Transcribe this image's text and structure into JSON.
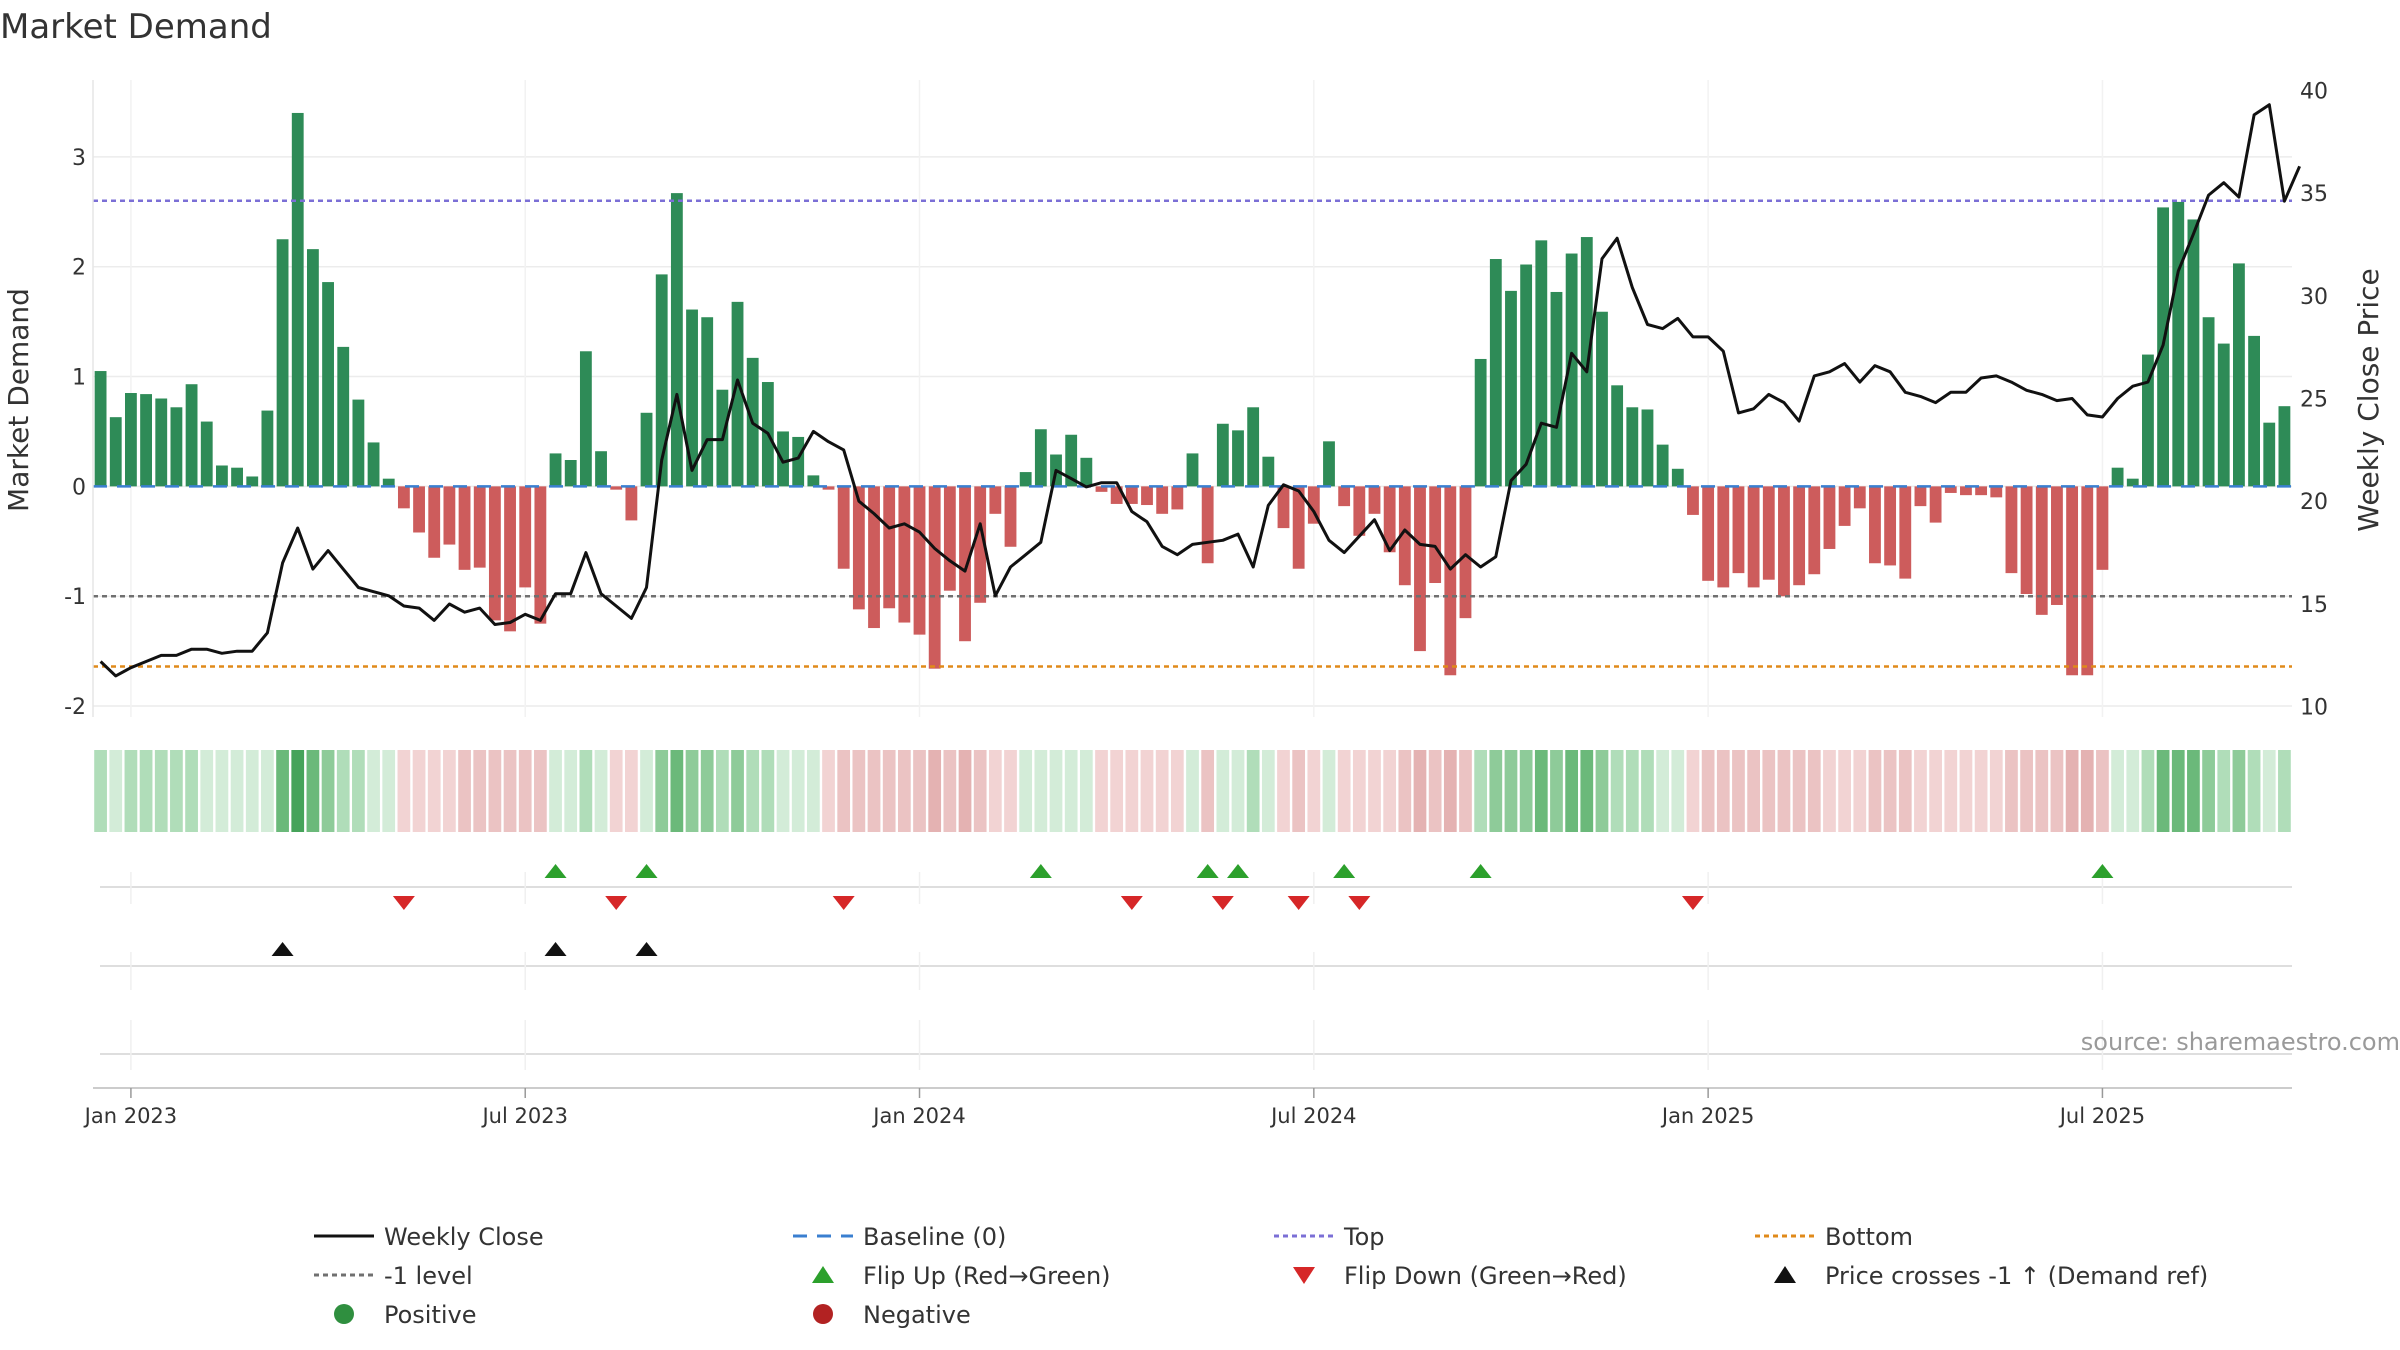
{
  "chart_data": {
    "type": "bar+line",
    "title": "Market Demand",
    "ylabel_left": "Market Demand",
    "ylabel_right": "Weekly Close Price",
    "ylim_left": [
      -2.1,
      3.7
    ],
    "yticks_left": [
      -2,
      -1,
      0,
      1,
      2,
      3
    ],
    "ylim_right": [
      9.5,
      40.5
    ],
    "yticks_right": [
      10,
      15,
      20,
      25,
      30,
      35,
      40
    ],
    "x_start_week": 0,
    "date_ticks": [
      {
        "label": "Jan 2023",
        "week": 2
      },
      {
        "label": "Jul 2023",
        "week": 28
      },
      {
        "label": "Jan 2024",
        "week": 54
      },
      {
        "label": "Jul 2024",
        "week": 80
      },
      {
        "label": "Jan 2025",
        "week": 106
      },
      {
        "label": "Jul 2025",
        "week": 132
      }
    ],
    "reference_lines": {
      "top": 2.6,
      "bottom": -1.64,
      "minus_one": -1,
      "baseline": 0
    },
    "demand": [
      1.05,
      0.63,
      0.85,
      0.84,
      0.8,
      0.72,
      0.93,
      0.59,
      0.19,
      0.17,
      0.09,
      0.69,
      2.25,
      3.4,
      2.16,
      1.86,
      1.27,
      0.79,
      0.4,
      0.07,
      -0.2,
      -0.42,
      -0.65,
      -0.53,
      -0.76,
      -0.74,
      -1.22,
      -1.32,
      -0.92,
      -1.25,
      0.3,
      0.24,
      1.23,
      0.32,
      -0.03,
      -0.31,
      0.67,
      1.93,
      2.67,
      1.61,
      1.54,
      0.88,
      1.68,
      1.17,
      0.95,
      0.5,
      0.45,
      0.1,
      -0.03,
      -0.75,
      -1.12,
      -1.29,
      -1.11,
      -1.24,
      -1.35,
      -1.66,
      -0.95,
      -1.41,
      -1.06,
      -0.25,
      -0.55,
      0.13,
      0.52,
      0.29,
      0.47,
      0.26,
      -0.05,
      -0.16,
      -0.16,
      -0.17,
      -0.25,
      -0.21,
      0.3,
      -0.7,
      0.57,
      0.51,
      0.72,
      0.27,
      -0.38,
      -0.75,
      -0.34,
      0.41,
      -0.18,
      -0.45,
      -0.25,
      -0.6,
      -0.9,
      -1.5,
      -0.88,
      -1.72,
      -1.2,
      1.16,
      2.07,
      1.78,
      2.02,
      2.24,
      1.77,
      2.12,
      2.27,
      1.59,
      0.92,
      0.72,
      0.7,
      0.38,
      0.16,
      -0.26,
      -0.86,
      -0.92,
      -0.79,
      -0.92,
      -0.85,
      -1.0,
      -0.9,
      -0.8,
      -0.57,
      -0.36,
      -0.2,
      -0.7,
      -0.72,
      -0.84,
      -0.18,
      -0.33,
      -0.06,
      -0.08,
      -0.08,
      -0.1,
      -0.79,
      -0.98,
      -1.17,
      -1.08,
      -1.72,
      -1.72,
      -0.76,
      0.17,
      0.07,
      1.2,
      2.54,
      2.59,
      2.43,
      1.54,
      1.3,
      2.03,
      1.37,
      0.58,
      0.73
    ],
    "close": [
      12.2,
      11.5,
      11.9,
      12.2,
      12.5,
      12.5,
      12.8,
      12.8,
      12.6,
      12.7,
      12.7,
      13.6,
      17.0,
      18.7,
      16.7,
      17.6,
      16.7,
      15.8,
      15.6,
      15.4,
      14.9,
      14.8,
      14.2,
      15.0,
      14.6,
      14.8,
      14.0,
      14.1,
      14.5,
      14.2,
      15.5,
      15.5,
      17.5,
      15.5,
      14.9,
      14.3,
      15.8,
      22.0,
      25.2,
      21.5,
      23.0,
      23.0,
      25.9,
      23.8,
      23.3,
      21.9,
      22.1,
      23.4,
      22.9,
      22.5,
      20.0,
      19.4,
      18.7,
      18.9,
      18.5,
      17.7,
      17.1,
      16.6,
      18.9,
      15.4,
      16.8,
      17.4,
      18.0,
      21.5,
      21.1,
      20.7,
      20.9,
      20.9,
      19.5,
      19.0,
      17.8,
      17.4,
      17.9,
      18.0,
      18.1,
      18.4,
      16.8,
      19.8,
      20.8,
      20.5,
      19.5,
      18.1,
      17.5,
      18.3,
      19.1,
      17.6,
      18.6,
      17.9,
      17.8,
      16.7,
      17.4,
      16.8,
      17.3,
      21.0,
      21.8,
      23.8,
      23.6,
      27.2,
      26.3,
      31.8,
      32.8,
      30.4,
      28.6,
      28.4,
      28.9,
      28.0,
      28.0,
      27.3,
      24.3,
      24.5,
      25.2,
      24.8,
      23.9,
      26.1,
      26.3,
      26.7,
      25.8,
      26.6,
      26.3,
      25.3,
      25.1,
      24.8,
      25.3,
      25.3,
      26.0,
      26.1,
      25.8,
      25.4,
      25.2,
      24.9,
      25.0,
      24.2,
      24.1,
      25.0,
      25.6,
      25.8,
      27.6,
      31.2,
      33.0,
      34.9,
      35.5,
      34.8,
      38.8,
      39.3,
      34.6,
      36.3
    ],
    "flip_up_weeks": [
      30,
      36,
      62,
      73,
      75,
      82,
      91,
      132
    ],
    "flip_down_weeks": [
      20,
      34,
      49,
      68,
      74,
      79,
      83,
      105
    ],
    "cross_weeks": [
      12,
      30,
      36
    ]
  },
  "source": "source: sharemaestro.com",
  "legend": [
    {
      "label": "Weekly Close",
      "symbol": "line",
      "color": "#111111"
    },
    {
      "label": "Baseline (0)",
      "symbol": "dash",
      "color": "#3a7fd0"
    },
    {
      "label": "Top",
      "symbol": "dot",
      "color": "#7b6fd6"
    },
    {
      "label": "Bottom",
      "symbol": "dot",
      "color": "#e08a1a"
    },
    {
      "label": "-1 level",
      "symbol": "dot",
      "color": "#707070"
    },
    {
      "label": "Flip Up (Red→Green)",
      "symbol": "triangle-up",
      "color": "#2ca02c"
    },
    {
      "label": "Flip Down (Green→Red)",
      "symbol": "triangle-down",
      "color": "#d62728"
    },
    {
      "label": "Price crosses -1 ↑ (Demand ref)",
      "symbol": "triangle-up",
      "color": "#111111"
    },
    {
      "label": "Positive",
      "symbol": "circle",
      "color": "#2f8f3f"
    },
    {
      "label": "Negative",
      "symbol": "circle",
      "color": "#b22222"
    }
  ],
  "colors": {
    "positive": "#2e8b57",
    "negative": "#cd5c5c",
    "close": "#111111",
    "baseline": "#3a7fd0",
    "top": "#7b6fd6",
    "bottom": "#e08a1a",
    "minus_one": "#707070"
  }
}
